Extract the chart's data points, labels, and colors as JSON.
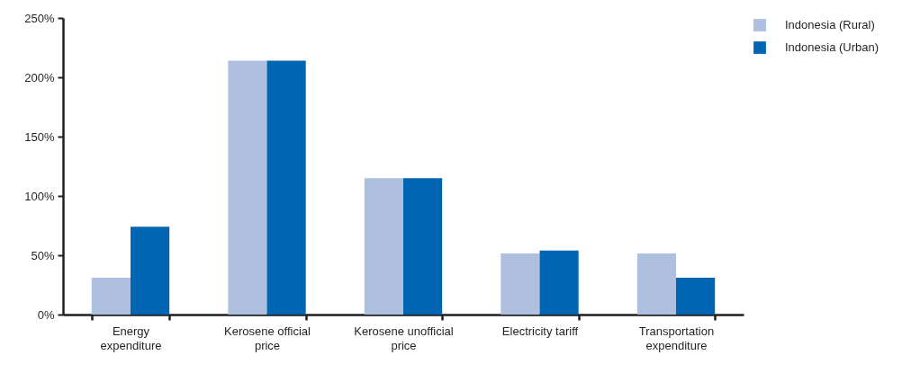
{
  "chart_data": {
    "type": "bar",
    "categories": [
      "Energy expenditure",
      "Kerosene official price",
      "Kerosene unofficial price",
      "Electricity tariff",
      "Transportation expenditure"
    ],
    "series": [
      {
        "name": "Indonesia (Rural)",
        "color": "#aebfe0",
        "values": [
          31,
          214,
          115,
          51.5,
          51.5
        ]
      },
      {
        "name": "Indonesia (Urban)",
        "color": "#0066b3",
        "values": [
          74,
          214,
          115,
          54,
          31
        ]
      }
    ],
    "ylim": [
      0,
      250
    ],
    "yticks": [
      {
        "value": 0,
        "label": "0%"
      },
      {
        "value": 50,
        "label": "50%"
      },
      {
        "value": 100,
        "label": "100%"
      },
      {
        "value": 150,
        "label": "150%"
      },
      {
        "value": 200,
        "label": "200%"
      },
      {
        "value": 250,
        "label": "250%"
      }
    ],
    "grid": false,
    "legend": "right"
  }
}
